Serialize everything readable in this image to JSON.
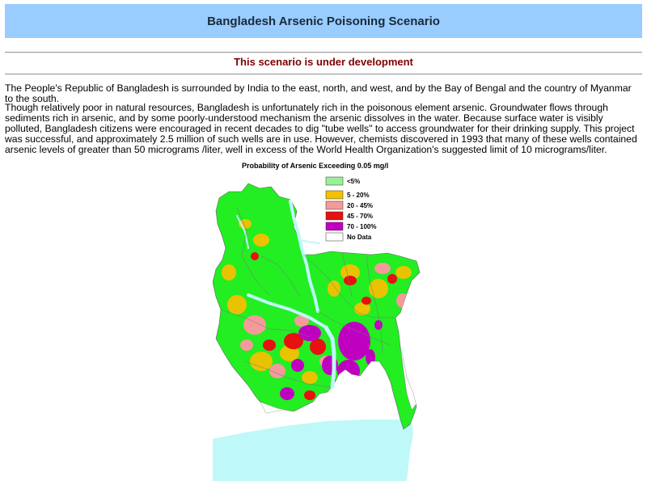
{
  "header": {
    "title": "Bangladesh Arsenic Poisoning Scenario"
  },
  "notice": {
    "text": "This scenario is under development"
  },
  "body": {
    "paragraph1": "The People's Republic of Bangladesh is surrounded by India to the east, north, and west, and by the Bay of Bengal and the country of Myanmar to the south.",
    "paragraph2": "Though relatively poor in natural resources, Bangladesh is unfortunately rich in the poisonous element arsenic. Groundwater flows through sediments rich in arsenic, and by some poorly-understood mechanism the arsenic dissolves in the water. Because surface water is visibly polluted, Bangladesh citizens were encouraged in recent decades to dig \"tube wells\" to access groundwater for their drinking supply. This project was successful, and approximately 2.5 million of such wells are in use. However, chemists discovered in 1993 that many of these wells contained arsenic levels of greater than 50 micrograms /liter, well in excess of the World Health Organization's suggested limit of 10 micrograms/liter."
  },
  "map": {
    "title": "Probability of Arsenic Exceeding 0.05 mg/l",
    "legend": [
      {
        "label": "<5%",
        "color": "#99f099"
      },
      {
        "label": "5 - 20%",
        "color": "#f5c000"
      },
      {
        "label": "20 - 45%",
        "color": "#f59a9a"
      },
      {
        "label": "45 - 70%",
        "color": "#e81010"
      },
      {
        "label": "70 - 100%",
        "color": "#c000c0"
      },
      {
        "label": "No Data",
        "color": "#ffffff"
      }
    ],
    "colors": {
      "land": "#22ee22",
      "water": "#bff8f8",
      "river": "#bff8f8",
      "border": "#777777"
    }
  }
}
